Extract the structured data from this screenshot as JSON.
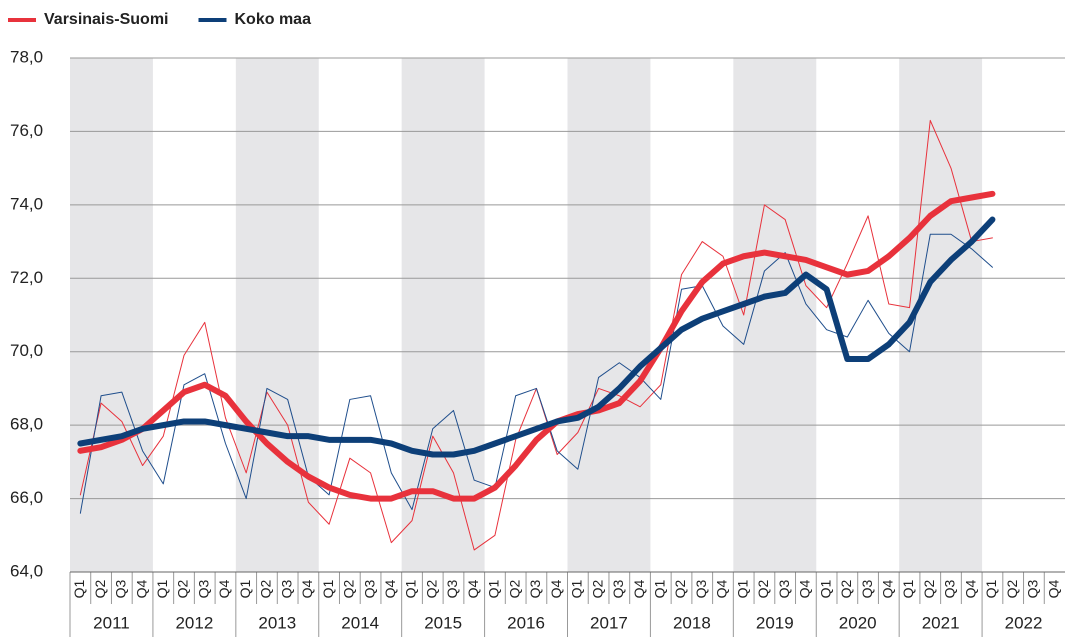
{
  "chart_data": {
    "type": "line",
    "categories": [
      "Q1",
      "Q2",
      "Q3",
      "Q4",
      "Q1",
      "Q2",
      "Q3",
      "Q4",
      "Q1",
      "Q2",
      "Q3",
      "Q4",
      "Q1",
      "Q2",
      "Q3",
      "Q4",
      "Q1",
      "Q2",
      "Q3",
      "Q4",
      "Q1",
      "Q2",
      "Q3",
      "Q4",
      "Q1",
      "Q2",
      "Q3",
      "Q4",
      "Q1",
      "Q2",
      "Q3",
      "Q4",
      "Q1",
      "Q2",
      "Q3",
      "Q4",
      "Q1",
      "Q2",
      "Q3",
      "Q4",
      "Q1",
      "Q2",
      "Q3",
      "Q4",
      "Q1",
      "Q2",
      "Q3",
      "Q4"
    ],
    "years": [
      "2011",
      "2012",
      "2013",
      "2014",
      "2015",
      "2016",
      "2017",
      "2018",
      "2019",
      "2020",
      "2021",
      "2022"
    ],
    "series": [
      {
        "color": "#e8323c",
        "width": 1,
        "values": [
          66.1,
          68.6,
          68.1,
          66.9,
          67.7,
          69.9,
          70.8,
          68.2,
          66.7,
          68.9,
          68.0,
          65.9,
          65.3,
          67.1,
          66.7,
          64.8,
          65.4,
          67.7,
          66.7,
          64.6,
          65.0,
          67.6,
          69.0,
          67.2,
          67.8,
          69.0,
          68.8,
          68.5,
          69.1,
          72.1,
          73.0,
          72.6,
          71.0,
          74.0,
          73.6,
          71.8,
          71.2,
          72.4,
          73.7,
          71.3,
          71.2,
          76.3,
          75.0,
          73.0,
          73.1,
          null,
          null,
          null
        ]
      },
      {
        "color": "#1f4e8c",
        "width": 1,
        "values": [
          65.6,
          68.8,
          68.9,
          67.3,
          66.4,
          69.1,
          69.4,
          67.5,
          66.0,
          69.0,
          68.7,
          66.6,
          66.1,
          68.7,
          68.8,
          66.7,
          65.7,
          67.9,
          68.4,
          66.5,
          66.3,
          68.8,
          69.0,
          67.3,
          66.8,
          69.3,
          69.7,
          69.3,
          68.7,
          71.7,
          71.8,
          70.7,
          70.2,
          72.2,
          72.7,
          71.3,
          70.6,
          70.4,
          71.4,
          70.5,
          70.0,
          73.2,
          73.2,
          72.8,
          72.3,
          null,
          null,
          null
        ]
      },
      {
        "name": "Varsinais-Suomi",
        "color": "#e8323c",
        "width": 6,
        "values": [
          67.3,
          67.4,
          67.6,
          67.9,
          68.4,
          68.9,
          69.1,
          68.8,
          68.1,
          67.5,
          67.0,
          66.6,
          66.3,
          66.1,
          66.0,
          66.0,
          66.2,
          66.2,
          66.0,
          66.0,
          66.3,
          66.9,
          67.6,
          68.1,
          68.3,
          68.4,
          68.6,
          69.2,
          70.1,
          71.1,
          71.9,
          72.4,
          72.6,
          72.7,
          72.6,
          72.5,
          72.3,
          72.1,
          72.2,
          72.6,
          73.1,
          73.7,
          74.1,
          74.2,
          74.3,
          null,
          null,
          null
        ]
      },
      {
        "name": "Koko maa",
        "color": "#0d3f78",
        "width": 6,
        "values": [
          67.5,
          67.6,
          67.7,
          67.9,
          68.0,
          68.1,
          68.1,
          68.0,
          67.9,
          67.8,
          67.7,
          67.7,
          67.6,
          67.6,
          67.6,
          67.5,
          67.3,
          67.2,
          67.2,
          67.3,
          67.5,
          67.7,
          67.9,
          68.1,
          68.2,
          68.5,
          69.0,
          69.6,
          70.1,
          70.6,
          70.9,
          71.1,
          71.3,
          71.5,
          71.6,
          72.1,
          71.7,
          69.8,
          69.8,
          70.2,
          70.8,
          71.9,
          72.5,
          73.0,
          73.6,
          null,
          null,
          null
        ]
      }
    ],
    "ylim": [
      64,
      78
    ],
    "yticks": [
      {
        "value": 64,
        "label": "64,0"
      },
      {
        "value": 66,
        "label": "66,0"
      },
      {
        "value": 68,
        "label": "68,0"
      },
      {
        "value": 70,
        "label": "70,0"
      },
      {
        "value": 72,
        "label": "72,0"
      },
      {
        "value": 74,
        "label": "74,0"
      },
      {
        "value": 76,
        "label": "76,0"
      },
      {
        "value": 78,
        "label": "78,0"
      }
    ],
    "grid": true,
    "legend": "top-left"
  }
}
